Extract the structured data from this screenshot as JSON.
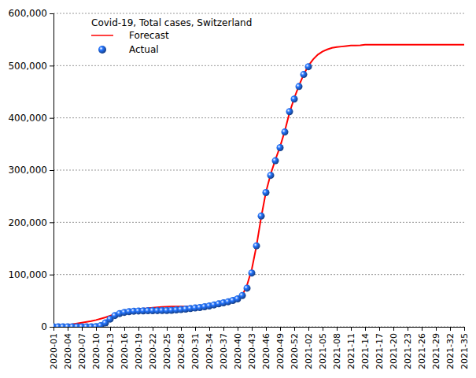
{
  "chart_data": {
    "type": "line",
    "title": "Covid-19, Total cases, Switzerland",
    "categories": [
      "2020-01",
      null,
      null,
      "2020-04",
      null,
      null,
      "2020-07",
      null,
      null,
      "2020-10",
      null,
      null,
      "2020-13",
      null,
      null,
      "2020-16",
      null,
      null,
      "2020-19",
      null,
      null,
      "2020-22",
      null,
      null,
      "2020-25",
      null,
      null,
      "2020-28",
      null,
      null,
      "2020-31",
      null,
      null,
      "2020-34",
      null,
      null,
      "2020-37",
      null,
      null,
      "2020-40",
      null,
      null,
      "2020-43",
      null,
      null,
      "2020-46",
      null,
      null,
      "2020-49",
      null,
      null,
      "2020-52",
      null,
      null,
      "2021-02",
      null,
      null,
      "2021-05",
      null,
      null,
      "2021-08",
      null,
      null,
      "2021-11",
      null,
      null,
      "2021-14",
      null,
      null,
      "2021-17",
      null,
      null,
      "2021-20",
      null,
      null,
      "2021-23",
      null,
      null,
      "2021-26",
      null,
      null,
      "2021-29",
      null,
      null,
      "2021-32",
      null,
      null,
      "2021-35"
    ],
    "series": [
      {
        "name": "Forecast",
        "color": "#ff0000",
        "type": "line",
        "line_style": "solid",
        "values": [
          0,
          1000,
          2000,
          3500,
          5000,
          6500,
          8000,
          9500,
          11000,
          13000,
          15500,
          18000,
          21000,
          24000,
          26500,
          28500,
          30500,
          32000,
          33500,
          34500,
          35500,
          36500,
          37500,
          38000,
          38500,
          39000,
          39000,
          39000,
          39000,
          39000,
          39000,
          39500,
          39500,
          40000,
          41000,
          42500,
          44000,
          46000,
          48500,
          52000,
          60000,
          80000,
          110000,
          155000,
          210000,
          258000,
          292000,
          320000,
          345000,
          375000,
          410000,
          438000,
          462000,
          483000,
          500000,
          512000,
          521000,
          527000,
          531000,
          534000,
          535500,
          536500,
          537500,
          538500,
          538500,
          539000,
          540000,
          540000,
          540000,
          540000,
          540000,
          540000,
          540000,
          540000,
          540000,
          540000,
          540000,
          540000,
          540000,
          540000,
          540000,
          540000,
          540000,
          540000,
          540000,
          540000,
          540000,
          540000
        ]
      },
      {
        "name": "Actual",
        "color": "#1f5fd0",
        "type": "scatter",
        "marker": "circle",
        "values": [
          0,
          0,
          0,
          0,
          0,
          0,
          0,
          0,
          20,
          300,
          2200,
          7500,
          14800,
          21600,
          25400,
          27700,
          29100,
          29900,
          30300,
          30600,
          30800,
          30900,
          31000,
          31100,
          31300,
          31700,
          32300,
          33000,
          34000,
          35000,
          36000,
          37000,
          38500,
          40000,
          42000,
          44000,
          46000,
          48000,
          50500,
          53500,
          60000,
          74000,
          103000,
          155000,
          212000,
          257000,
          290000,
          318000,
          343000,
          373000,
          412000,
          436000,
          460000,
          483000,
          498000,
          null,
          null,
          null,
          null,
          null,
          null,
          null,
          null,
          null,
          null,
          null,
          null,
          null,
          null,
          null,
          null,
          null,
          null,
          null,
          null,
          null,
          null,
          null,
          null,
          null,
          null,
          null,
          null,
          null,
          null,
          null,
          null,
          null
        ]
      }
    ],
    "ylim": [
      0,
      600000
    ],
    "yticks": [
      0,
      {
        "value": 100000,
        "label": "100,000"
      },
      {
        "value": 200000,
        "label": "200,000"
      },
      {
        "value": 300000,
        "label": "300,000"
      },
      {
        "value": 400000,
        "label": "400,000"
      },
      {
        "value": 500000,
        "label": "500,000"
      },
      {
        "value": 600000,
        "label": "600,000"
      }
    ],
    "grid": true,
    "legend": "top-left"
  }
}
